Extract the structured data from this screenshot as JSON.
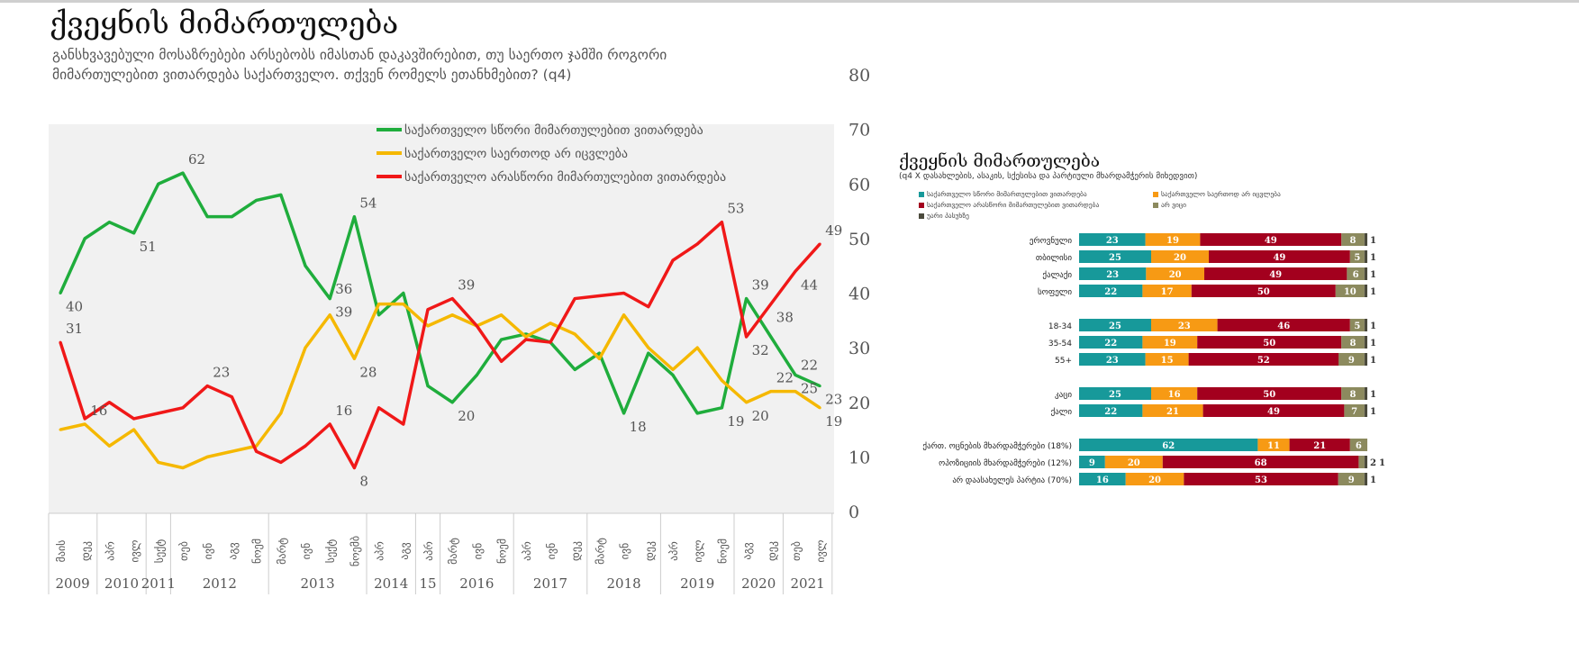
{
  "title": "ქვეყნის მიმართულება",
  "subtitle": "განსხვავებული მოსაზრებები არსებობს იმასთან დაკავშირებით, თუ საერთო ჯამში როგორი მიმართულებით ვითარდება საქართველო. თქვენ რომელს ეთანხმებით? (q4)",
  "chart_data": [
    {
      "type": "line",
      "title": "ქვეყნის მიმართულება",
      "ylim": [
        0,
        80
      ],
      "yticks": [
        0,
        10,
        20,
        30,
        40,
        50,
        60,
        70,
        80
      ],
      "grid": false,
      "legend_position": "top-center",
      "x": [
        "მაის",
        "დეკ",
        "აპრ",
        "ივლ",
        "სექტ",
        "თებ",
        "ივნ",
        "აგვ",
        "ნოემ",
        "მარტ",
        "ივნ",
        "სექტ",
        "ნოემბ",
        "აპრ",
        "აგვ",
        "აპრ",
        "მარტ",
        "ივნ",
        "ნოემ",
        "აპრ",
        "ივნ",
        "დეკ",
        "მარტ",
        "ივნ",
        "დეკ",
        "აპრ",
        "ივლ",
        "ნოემ",
        "აგვ",
        "დეკ",
        "თებ",
        "ივლ"
      ],
      "years": [
        {
          "label": "2009",
          "count": 2
        },
        {
          "label": "2010",
          "count": 2
        },
        {
          "label": "2011",
          "count": 1
        },
        {
          "label": "2012",
          "count": 4
        },
        {
          "label": "2013",
          "count": 4
        },
        {
          "label": "2014",
          "count": 2
        },
        {
          "label": "15",
          "count": 1
        },
        {
          "label": "2016",
          "count": 3
        },
        {
          "label": "2017",
          "count": 3
        },
        {
          "label": "2018",
          "count": 3
        },
        {
          "label": "2019",
          "count": 3
        },
        {
          "label": "2020",
          "count": 2
        },
        {
          "label": "2021",
          "count": 2
        }
      ],
      "series": [
        {
          "name": "საქართველო  სწორი მიმართულებით ვითარდება",
          "color": "#1fad3c",
          "values": [
            40,
            50,
            53,
            51,
            60,
            62,
            54,
            54,
            57,
            58,
            45,
            39,
            54,
            36,
            40,
            23,
            20,
            25,
            31.5,
            32.5,
            31,
            26,
            29,
            18,
            29,
            25,
            18,
            19,
            39,
            32,
            25,
            23
          ],
          "labels": [
            0,
            3,
            5,
            11,
            12,
            16,
            23,
            27,
            28,
            30,
            31
          ]
        },
        {
          "name": "საქართველო საერთოდ არ იცვლება",
          "color": "#f5b800",
          "values": [
            15,
            16,
            12,
            15,
            9,
            8,
            10,
            11,
            12,
            18,
            30,
            36,
            28,
            38,
            38,
            34,
            36,
            34,
            36,
            32,
            34.5,
            32.5,
            28,
            36,
            30,
            26,
            30,
            24,
            20,
            22,
            22,
            19
          ],
          "labels": [
            1,
            11,
            12,
            28,
            29,
            30,
            31
          ]
        },
        {
          "name": "საქართველო არასწორი მიმართულებით ვითარდება",
          "color": "#f01818",
          "values": [
            31,
            17,
            20,
            17,
            18,
            19,
            23,
            21,
            11,
            9,
            12,
            16,
            8,
            19,
            16,
            37,
            39,
            34,
            27.5,
            31.5,
            31,
            39,
            39.5,
            40,
            37.5,
            46,
            49,
            53,
            32,
            38,
            44,
            49
          ],
          "labels": [
            0,
            6,
            11,
            12,
            16,
            27,
            28,
            29,
            30,
            31
          ]
        }
      ]
    },
    {
      "type": "bar",
      "stacked": true,
      "horizontal": true,
      "title": "ქვეყნის მიმართულება",
      "subtitle": "(q4 X დასახლების, ასაკის, სქესისა და პარტიული მხარდამჭერის მიხედვით)",
      "legend": [
        {
          "name": "საქართველო სწორი მიმართულებით ვითარდება",
          "color": "#17999a"
        },
        {
          "name": "საქართველო საერთოდ არ იცვლება",
          "color": "#f79a14"
        },
        {
          "name": "საქართველო არასწორი მიმართულებით ვითარდება",
          "color": "#a3001e"
        },
        {
          "name": "არ ვიცი",
          "color": "#8c8a5e"
        },
        {
          "name": "უარი პასუხზე",
          "color": "#4b4a3c"
        }
      ],
      "groups": [
        {
          "rows": [
            {
              "label": "ეროვნული",
              "values": [
                23,
                19,
                49,
                8,
                1
              ]
            },
            {
              "label": "თბილისი",
              "values": [
                25,
                20,
                49,
                5,
                1
              ]
            },
            {
              "label": "ქალაქი",
              "values": [
                23,
                20,
                49,
                6,
                1
              ]
            },
            {
              "label": "სოფელი",
              "values": [
                22,
                17,
                50,
                10,
                1
              ]
            }
          ]
        },
        {
          "rows": [
            {
              "label": "18-34",
              "values": [
                25,
                23,
                46,
                5,
                1
              ]
            },
            {
              "label": "35-54",
              "values": [
                22,
                19,
                50,
                8,
                1
              ]
            },
            {
              "label": "55+",
              "values": [
                23,
                15,
                52,
                9,
                1
              ]
            }
          ]
        },
        {
          "rows": [
            {
              "label": "კაცი",
              "values": [
                25,
                16,
                50,
                8,
                1
              ]
            },
            {
              "label": "ქალი",
              "values": [
                22,
                21,
                49,
                7,
                1
              ]
            }
          ]
        },
        {
          "rows": [
            {
              "label": "ქართ. ოცნების მხარდამჭერები (18%)",
              "values": [
                62,
                11,
                21,
                6,
                0
              ]
            },
            {
              "label": "ოპოზიციის მხარდამჭერები (12%)",
              "values": [
                9,
                20,
                68,
                2,
                1
              ]
            },
            {
              "label": "არ დაასახელეს პარტია (70%)",
              "values": [
                16,
                20,
                53,
                9,
                1
              ]
            }
          ]
        }
      ]
    }
  ]
}
